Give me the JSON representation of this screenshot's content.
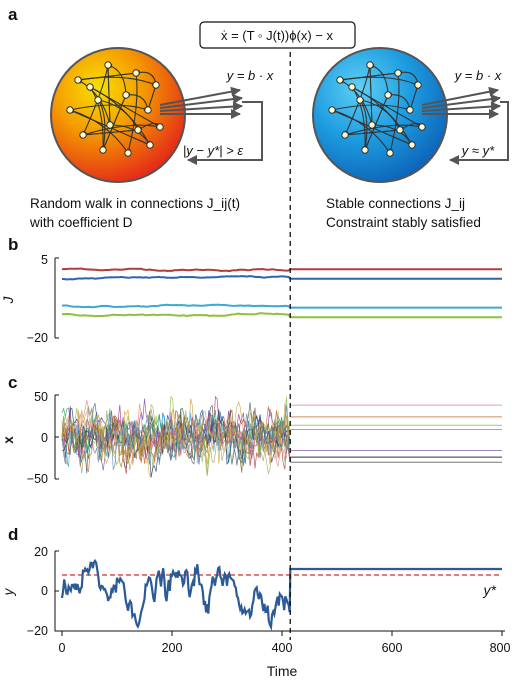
{
  "panel_a": {
    "letter": "a",
    "equation": "ẋ = (T ◦ J(t))ϕ(x) − x",
    "readout": "y = b · x",
    "left_condition": "|y − y*| > ε",
    "right_condition": "y ≈ y*",
    "left_caption_line1": "Random walk in connections J_ij(t)",
    "left_caption_line2": "with coefficient D",
    "right_caption_line1": "Stable connections J_ij",
    "right_caption_line2": "Constraint stably satisfied",
    "left_colors": [
      "#f7e000",
      "#f59a00",
      "#e3261a"
    ],
    "right_colors": [
      "#5fd0f6",
      "#1e9de0",
      "#0d63b8"
    ]
  },
  "panel_b": {
    "letter": "b",
    "ylabel": "J",
    "yticks": [
      "5",
      "−20"
    ]
  },
  "panel_c": {
    "letter": "c",
    "ylabel": "x",
    "yticks": [
      "50",
      "0",
      "−50"
    ]
  },
  "panel_d": {
    "letter": "d",
    "ylabel": "y",
    "yticks": [
      "20",
      "0",
      "−20"
    ],
    "target_label": "y*"
  },
  "xaxis": {
    "label": "Time",
    "ticks": [
      "0",
      "200",
      "400",
      "600",
      "800"
    ]
  },
  "chart_data": [
    {
      "panel": "b",
      "type": "line",
      "xlim": [
        0,
        800
      ],
      "ylim": [
        -20,
        5
      ],
      "ylabel": "J",
      "switch_time": 415,
      "series": [
        {
          "color": "#b23b3b",
          "start": 1.5,
          "end": 1.5
        },
        {
          "color": "#2e64b0",
          "start": -1.5,
          "end": -1.5
        },
        {
          "color": "#3ca8d4",
          "start": -10.0,
          "end": -10.5
        },
        {
          "color": "#8fbf3f",
          "start": -12.5,
          "end": -13.5
        }
      ]
    },
    {
      "panel": "c",
      "type": "line",
      "xlim": [
        0,
        800
      ],
      "ylim": [
        -50,
        50
      ],
      "ylabel": "x",
      "switch_time": 415,
      "settled_values": [
        38,
        24,
        14,
        9,
        -16,
        -24,
        -30
      ],
      "settled_colors": [
        "#e8a0a0",
        "#d48b5a",
        "#9ccc78",
        "#6ab8e0",
        "#a088c8",
        "#333333",
        "#777777"
      ]
    },
    {
      "panel": "d",
      "type": "line",
      "xlim": [
        0,
        800
      ],
      "ylim": [
        -20,
        20
      ],
      "ylabel": "y",
      "xlabel": "Time",
      "switch_time": 415,
      "target_y": 8,
      "settled_y": 11,
      "series_color": "#2b5a96",
      "target_color": "#d9534f"
    }
  ]
}
